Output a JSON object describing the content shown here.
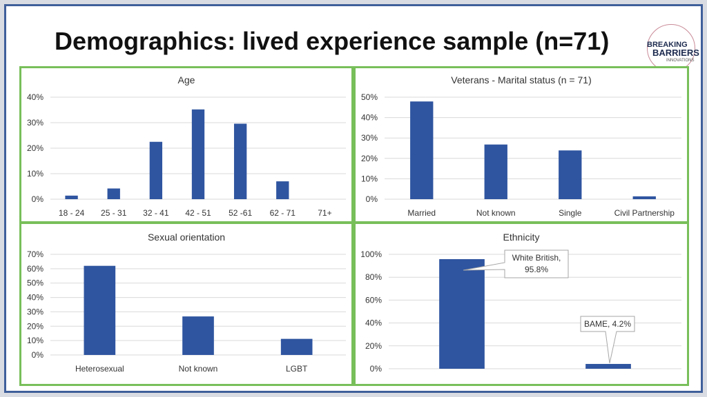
{
  "header": {
    "title": "Demographics: lived experience sample (n=71)",
    "logo_line1": "BREAKING",
    "logo_line2": "BARRIERS",
    "logo_line3": "INNOVATIONS"
  },
  "colors": {
    "bar": "#2f55a0",
    "panel_border": "#78bf5a",
    "frame": "#3f5f9a"
  },
  "chart_data": [
    {
      "type": "bar",
      "title": "Age",
      "categories": [
        "18 - 24",
        "25 - 31",
        "32 - 41",
        "42 - 51",
        "52 -61",
        "62 - 71",
        "71+"
      ],
      "values": [
        1.4,
        4.2,
        22.5,
        35.2,
        29.6,
        7.0,
        0
      ],
      "ylim": [
        0,
        40
      ],
      "yticks": [
        0,
        10,
        20,
        30,
        40
      ],
      "ytick_labels": [
        "0%",
        "10%",
        "20%",
        "30%",
        "40%"
      ],
      "grid": true
    },
    {
      "type": "bar",
      "title": "Veterans - Marital status (n = 71)",
      "categories": [
        "Married",
        "Not known",
        "Single",
        "Civil Partnership"
      ],
      "values": [
        47.9,
        26.8,
        23.9,
        1.4
      ],
      "ylim": [
        0,
        50
      ],
      "yticks": [
        0,
        10,
        20,
        30,
        40,
        50
      ],
      "ytick_labels": [
        "0%",
        "10%",
        "20%",
        "30%",
        "40%",
        "50%"
      ],
      "grid": true
    },
    {
      "type": "bar",
      "title": "Sexual orientation",
      "categories": [
        "Heterosexual",
        "Not known",
        "LGBT"
      ],
      "values": [
        62,
        26.8,
        11.2
      ],
      "ylim": [
        0,
        70
      ],
      "yticks": [
        0,
        10,
        20,
        30,
        40,
        50,
        60,
        70
      ],
      "ytick_labels": [
        "0%",
        "10%",
        "20%",
        "30%",
        "40%",
        "50%",
        "60%",
        "70%"
      ],
      "grid": true
    },
    {
      "type": "bar",
      "title": "Ethnicity",
      "categories": [
        "White British",
        "BAME"
      ],
      "values": [
        95.8,
        4.2
      ],
      "ylim": [
        0,
        100
      ],
      "yticks": [
        0,
        20,
        40,
        60,
        80,
        100
      ],
      "ytick_labels": [
        "0%",
        "20%",
        "40%",
        "60%",
        "80%",
        "100%"
      ],
      "grid": true,
      "show_category_labels": false,
      "data_labels": [
        "White British,\n95.8%",
        "BAME, 4.2%"
      ]
    }
  ]
}
